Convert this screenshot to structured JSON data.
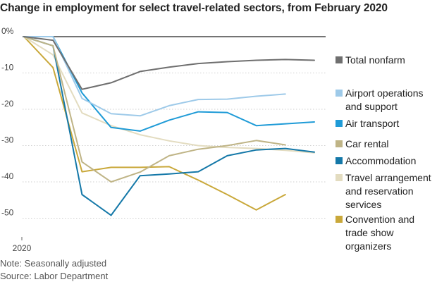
{
  "title": "Change in employment for select travel-related sectors, from February 2020",
  "notes": {
    "note": "Note: Seasonally adjusted",
    "source": "Source: Labor Department"
  },
  "chart_data": {
    "type": "line",
    "title": "Change in employment for select travel-related sectors, from February 2020",
    "xlabel": "",
    "ylabel": "",
    "x_tick_labels": [
      {
        "index": 0,
        "label": "2020"
      }
    ],
    "y_ticks": [
      {
        "value": 0,
        "label": "0%"
      },
      {
        "value": -10,
        "label": "-10"
      },
      {
        "value": -20,
        "label": "-20"
      },
      {
        "value": -30,
        "label": "-30"
      },
      {
        "value": -40,
        "label": "-40"
      },
      {
        "value": -50,
        "label": "-50"
      }
    ],
    "ylim": [
      -55,
      0
    ],
    "grid": true,
    "legend_placement": "right",
    "series": [
      {
        "name": "Total nonfarm",
        "color": "#6f6f6f",
        "legend_lines": [
          "Total nonfarm"
        ],
        "values": [
          0,
          -1,
          -14.5,
          -12.7,
          -9.6,
          -8.4,
          -7.4,
          -6.9,
          -6.5,
          -6.3,
          -6.5
        ]
      },
      {
        "name": "Airport operations and support",
        "color": "#9ecae9",
        "legend_lines": [
          "Airport operations",
          "and support"
        ],
        "values": [
          0,
          0,
          -17,
          -21.2,
          -21.8,
          -19,
          -17.3,
          -17.2,
          -16.4,
          -15.8,
          null
        ]
      },
      {
        "name": "Air transport",
        "color": "#1f9bd7",
        "legend_lines": [
          "Air transport"
        ],
        "values": [
          0,
          0,
          -15.5,
          -25,
          -26,
          -23,
          -20.7,
          -20.9,
          -24.5,
          -24,
          -23.5
        ]
      },
      {
        "name": "Car rental",
        "color": "#bfb486",
        "legend_lines": [
          "Car rental"
        ],
        "values": [
          0,
          -2.5,
          -34.5,
          -40,
          -37.3,
          -32.8,
          -31,
          -30,
          -28.6,
          -29.8,
          null
        ]
      },
      {
        "name": "Accommodation",
        "color": "#1478a8",
        "legend_lines": [
          "Accommodation"
        ],
        "values": [
          0,
          -2.5,
          -43.5,
          -49.2,
          -38.3,
          -37.8,
          -37.2,
          -32.8,
          -31.2,
          -30.8,
          -31.8
        ]
      },
      {
        "name": "Travel arrangement and reservation services",
        "color": "#e3dcc0",
        "legend_lines": [
          "Travel arrangement",
          "and reservation",
          "services"
        ],
        "values": [
          0,
          -5,
          -21,
          -24.5,
          -27,
          -28.7,
          -30,
          -30.5,
          -30.8,
          -31.3,
          -32
        ]
      },
      {
        "name": "Convention and trade show organizers",
        "color": "#c9a83a",
        "legend_lines": [
          "Convention and",
          "trade show",
          "organizers"
        ],
        "values": [
          0,
          -8.5,
          -37.2,
          -36,
          -36,
          -35.8,
          -39.5,
          -43.5,
          -47.7,
          -43.5,
          null
        ]
      }
    ]
  }
}
